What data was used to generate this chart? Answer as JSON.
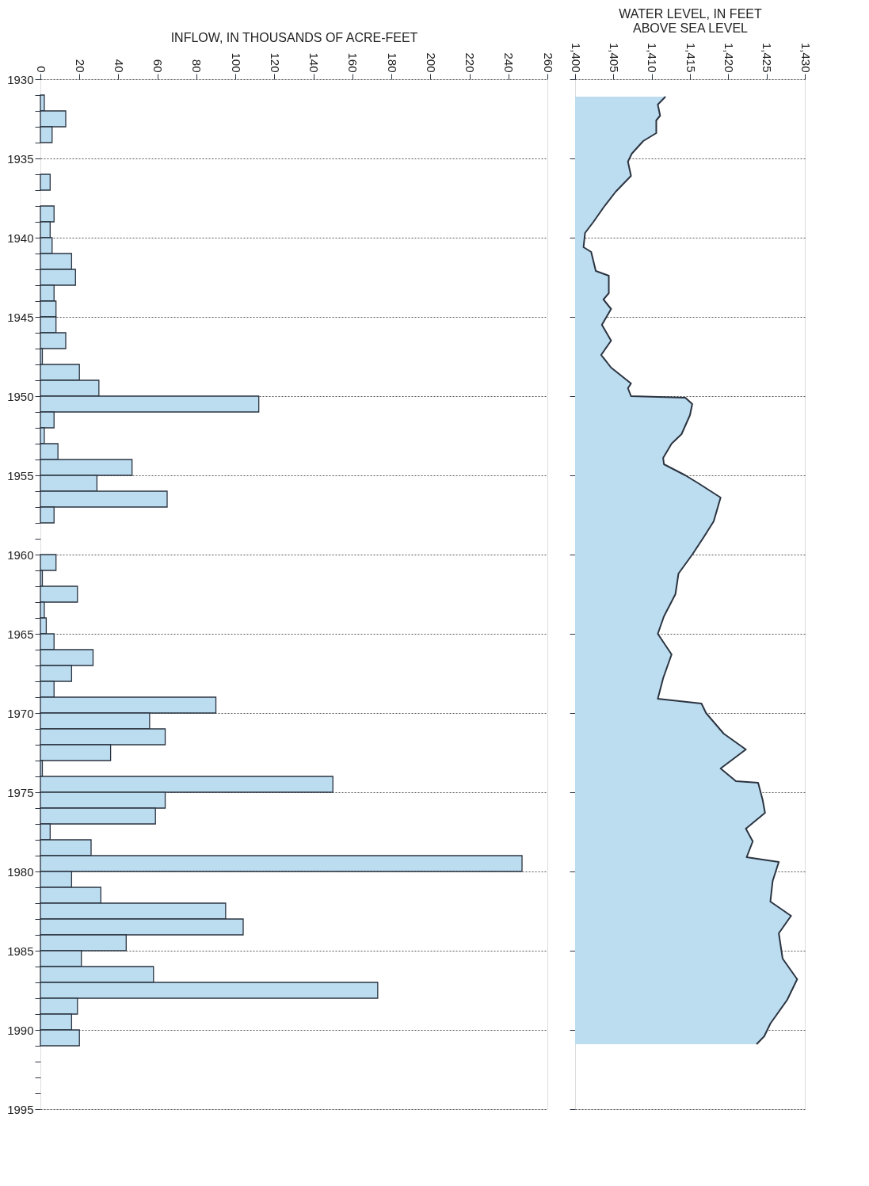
{
  "chart_data": [
    {
      "type": "bar",
      "orientation": "horizontal",
      "xlabel": "INFLOW, IN THOUSANDS OF ACRE-FEET",
      "x": [
        1931.5,
        1932.5,
        1933.5,
        1934.5,
        1935.5,
        1936.5,
        1937.5,
        1938.5,
        1939.5,
        1940.5,
        1941.5,
        1942.5,
        1943.5,
        1944.5,
        1945.5,
        1946.5,
        1947.5,
        1948.5,
        1949.5,
        1950.5,
        1951.5,
        1952.5,
        1953.5,
        1954.5,
        1955.5,
        1956.5,
        1957.5,
        1958.5,
        1959.5,
        1960.5,
        1961.5,
        1962.5,
        1963.5,
        1964.5,
        1965.5,
        1966.5,
        1967.5,
        1968.5,
        1969.5,
        1970.5,
        1971.5,
        1972.5,
        1973.5,
        1974.5,
        1975.5,
        1976.5,
        1977.5,
        1978.5,
        1979.5,
        1980.5,
        1981.5,
        1982.5,
        1983.5,
        1984.5,
        1985.5,
        1986.5,
        1987.5,
        1988.5,
        1989.5,
        1990.5
      ],
      "values": [
        2,
        13,
        6,
        0,
        0,
        5,
        0,
        7,
        5,
        6,
        16,
        18,
        7,
        8,
        8,
        13,
        1,
        20,
        30,
        112,
        7,
        2,
        9,
        47,
        29,
        65,
        7,
        0,
        0,
        8,
        1,
        19,
        2,
        3,
        7,
        27,
        16,
        7,
        90,
        56,
        64,
        36,
        1,
        150,
        64,
        59,
        5,
        26,
        247,
        16,
        31,
        95,
        104,
        44,
        21,
        58,
        173,
        19,
        16,
        20
      ],
      "color": "#bcdcf0",
      "xlim": [
        0,
        260
      ],
      "xticks": [
        0,
        20,
        40,
        60,
        80,
        100,
        120,
        140,
        160,
        180,
        200,
        220,
        240,
        260
      ],
      "ylim": [
        1995,
        1930
      ],
      "yticks": [
        1930,
        {
          "value": 1931,
          "label": null
        },
        {
          "value": 1932,
          "label": null
        },
        {
          "value": 1933,
          "label": null
        },
        {
          "value": 1934,
          "label": null
        },
        1935,
        {
          "value": 1936,
          "label": null
        },
        {
          "value": 1937,
          "label": null
        },
        {
          "value": 1938,
          "label": null
        },
        {
          "value": 1939,
          "label": null
        },
        1940,
        {
          "value": 1941,
          "label": null
        },
        {
          "value": 1942,
          "label": null
        },
        {
          "value": 1943,
          "label": null
        },
        {
          "value": 1944,
          "label": null
        },
        1945,
        {
          "value": 1946,
          "label": null
        },
        {
          "value": 1947,
          "label": null
        },
        {
          "value": 1948,
          "label": null
        },
        {
          "value": 1949,
          "label": null
        },
        1950,
        {
          "value": 1951,
          "label": null
        },
        {
          "value": 1952,
          "label": null
        },
        {
          "value": 1953,
          "label": null
        },
        {
          "value": 1954,
          "label": null
        },
        1955,
        {
          "value": 1956,
          "label": null
        },
        {
          "value": 1957,
          "label": null
        },
        {
          "value": 1958,
          "label": null
        },
        {
          "value": 1959,
          "label": null
        },
        1960,
        {
          "value": 1961,
          "label": null
        },
        {
          "value": 1962,
          "label": null
        },
        {
          "value": 1963,
          "label": null
        },
        {
          "value": 1964,
          "label": null
        },
        1965,
        {
          "value": 1966,
          "label": null
        },
        {
          "value": 1967,
          "label": null
        },
        {
          "value": 1968,
          "label": null
        },
        {
          "value": 1969,
          "label": null
        },
        1970,
        {
          "value": 1971,
          "label": null
        },
        {
          "value": 1972,
          "label": null
        },
        {
          "value": 1973,
          "label": null
        },
        {
          "value": 1974,
          "label": null
        },
        1975,
        {
          "value": 1976,
          "label": null
        },
        {
          "value": 1977,
          "label": null
        },
        {
          "value": 1978,
          "label": null
        },
        {
          "value": 1979,
          "label": null
        },
        1980,
        {
          "value": 1981,
          "label": null
        },
        {
          "value": 1982,
          "label": null
        },
        {
          "value": 1983,
          "label": null
        },
        {
          "value": 1984,
          "label": null
        },
        1985,
        {
          "value": 1986,
          "label": null
        },
        {
          "value": 1987,
          "label": null
        },
        {
          "value": 1988,
          "label": null
        },
        {
          "value": 1989,
          "label": null
        },
        1990,
        {
          "value": 1991,
          "label": null
        },
        {
          "value": 1992,
          "label": null
        },
        {
          "value": 1993,
          "label": null
        },
        {
          "value": 1994,
          "label": null
        },
        1995
      ],
      "grid": "y"
    },
    {
      "type": "area",
      "orientation": "horizontal",
      "xlabel": "WATER LEVEL, IN FEET ABOVE SEA LEVEL",
      "series": [
        {
          "color": "#bcdcf0",
          "x": [
            1931.1,
            1931.6,
            1932.3,
            1932.6,
            1933.4,
            1933.9,
            1934.7,
            1935.2,
            1936.1,
            1937.1,
            1938.1,
            1939.0,
            1939.7,
            1940.6,
            1940.9,
            1942.1,
            1942.4,
            1943.5,
            1943.9,
            1944.5,
            1945.5,
            1946.5,
            1947.4,
            1948.2,
            1949.2,
            1949.5,
            1950.0,
            1950.1,
            1950.5,
            1951.2,
            1952.4,
            1953.0,
            1953.9,
            1954.3,
            1955.0,
            1955.5,
            1956.4,
            1957.9,
            1958.9,
            1960.0,
            1961.2,
            1962.5,
            1963.9,
            1965.0,
            1966.3,
            1967.8,
            1969.1,
            1969.4,
            1970.0,
            1971.3,
            1972.3,
            1973.5,
            1974.3,
            1974.4,
            1975.5,
            1976.3,
            1977.3,
            1978.1,
            1979.1,
            1979.4,
            1980.6,
            1981.9,
            1982.8,
            1983.9,
            1985.5,
            1986.8,
            1988.1,
            1989.6,
            1990.4,
            1990.9
          ],
          "values": [
            1411.8,
            1410.8,
            1411.1,
            1410.6,
            1410.6,
            1408.9,
            1407.4,
            1406.9,
            1407.3,
            1405.3,
            1403.7,
            1402.4,
            1401.3,
            1401.1,
            1402.1,
            1402.7,
            1404.4,
            1404.4,
            1403.7,
            1404.7,
            1403.5,
            1404.7,
            1403.4,
            1404.7,
            1407.3,
            1406.9,
            1407.3,
            1414.4,
            1415.3,
            1415.0,
            1413.9,
            1412.6,
            1411.5,
            1411.6,
            1414.4,
            1416.1,
            1419.0,
            1418.1,
            1416.8,
            1415.3,
            1413.5,
            1413.1,
            1411.6,
            1410.8,
            1412.6,
            1411.5,
            1410.8,
            1416.5,
            1417.1,
            1419.4,
            1422.3,
            1419.0,
            1421.0,
            1423.9,
            1424.5,
            1424.8,
            1422.3,
            1423.2,
            1422.4,
            1426.6,
            1425.8,
            1425.5,
            1428.2,
            1426.6,
            1427.1,
            1429.0,
            1427.7,
            1425.5,
            1424.7,
            1423.7
          ]
        }
      ],
      "xlim": [
        1400,
        1430
      ],
      "xticks": [
        {
          "value": 1400,
          "label": "1,400"
        },
        {
          "value": 1405,
          "label": "1,405"
        },
        {
          "value": 1410,
          "label": "1,410"
        },
        {
          "value": 1415,
          "label": "1,415"
        },
        {
          "value": 1420,
          "label": "1,420"
        },
        {
          "value": 1425,
          "label": "1,425"
        },
        {
          "value": 1430,
          "label": "1,430"
        }
      ],
      "ylim": [
        1995,
        1930
      ],
      "yticks": [
        1930,
        1935,
        1940,
        1945,
        1950,
        1955,
        1960,
        1965,
        1970,
        1975,
        1980,
        1985,
        1990,
        1995
      ],
      "tick_labels": "x",
      "grid": "y"
    }
  ]
}
